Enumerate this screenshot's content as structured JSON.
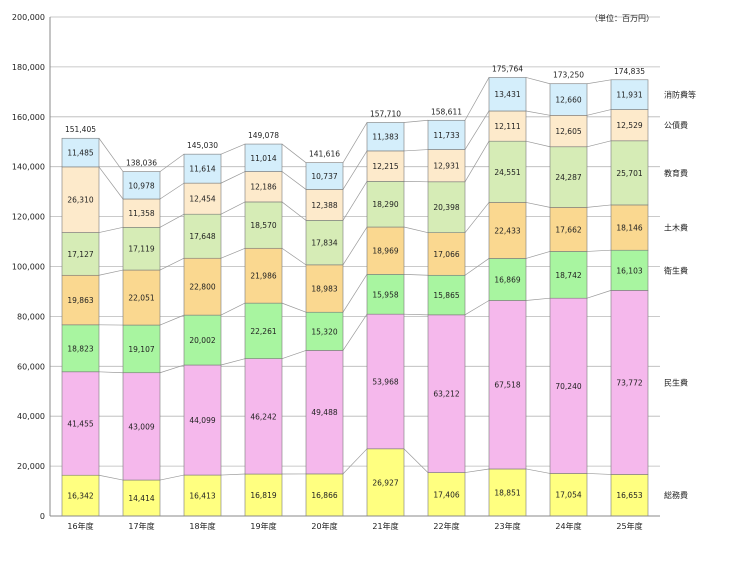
{
  "chart_data": {
    "type": "bar",
    "stacked": true,
    "unit_note": "（単位：百万円）",
    "categories": [
      "16年度",
      "17年度",
      "18年度",
      "19年度",
      "20年度",
      "21年度",
      "22年度",
      "23年度",
      "24年度",
      "25年度"
    ],
    "ylim": [
      0,
      200000
    ],
    "yticks": [
      "0",
      "20,000",
      "40,000",
      "60,000",
      "80,000",
      "100,000",
      "120,000",
      "140,000",
      "160,000",
      "180,000",
      "200,000"
    ],
    "series": [
      {
        "name": "総務費",
        "color": "#ffff80",
        "values": [
          16342,
          14414,
          16413,
          16819,
          16866,
          26927,
          17406,
          18851,
          17054,
          16653
        ],
        "labels": [
          "16,342",
          "14,414",
          "16,413",
          "16,819",
          "16,866",
          "26,927",
          "17,406",
          "18,851",
          "17,054",
          "16,653"
        ]
      },
      {
        "name": "民生費",
        "color": "#f5b8ec",
        "values": [
          41455,
          43009,
          44099,
          46242,
          49488,
          53968,
          63212,
          67518,
          70240,
          73772
        ],
        "labels": [
          "41,455",
          "43,009",
          "44,099",
          "46,242",
          "49,488",
          "53,968",
          "63,212",
          "67,518",
          "70,240",
          "73,772"
        ]
      },
      {
        "name": "衛生費",
        "color": "#a8f5a0",
        "values": [
          18823,
          19107,
          20002,
          22261,
          15320,
          15958,
          15865,
          16869,
          18742,
          16103
        ],
        "labels": [
          "18,823",
          "19,107",
          "20,002",
          "22,261",
          "15,320",
          "15,958",
          "15,865",
          "16,869",
          "18,742",
          "16,103"
        ]
      },
      {
        "name": "土木費",
        "color": "#fad890",
        "values": [
          19863,
          22051,
          22800,
          21986,
          18983,
          18969,
          17066,
          22433,
          17662,
          18146
        ],
        "labels": [
          "19,863",
          "22,051",
          "22,800",
          "21,986",
          "18,983",
          "18,969",
          "17,066",
          "22,433",
          "17,662",
          "18,146"
        ]
      },
      {
        "name": "教育費",
        "color": "#d6ecb6",
        "values": [
          17127,
          17119,
          17648,
          18570,
          17834,
          18290,
          20398,
          24551,
          24287,
          25701
        ],
        "labels": [
          "17,127",
          "17,119",
          "17,648",
          "18,570",
          "17,834",
          "18,290",
          "20,398",
          "24,551",
          "24,287",
          "25,701"
        ]
      },
      {
        "name": "公債費",
        "color": "#fdeacb",
        "values": [
          26310,
          11358,
          12454,
          12186,
          12388,
          12215,
          12931,
          12111,
          12605,
          12529
        ],
        "labels": [
          "26,310",
          "11,358",
          "12,454",
          "12,186",
          "12,388",
          "12,215",
          "12,931",
          "12,111",
          "12,605",
          "12,529"
        ]
      },
      {
        "name": "消防費等",
        "color": "#d4eefb",
        "values": [
          11485,
          10978,
          11614,
          11014,
          10737,
          11383,
          11733,
          13431,
          12660,
          11931
        ],
        "labels": [
          "11,485",
          "10,978",
          "11,614",
          "11,014",
          "10,737",
          "11,383",
          "11,733",
          "13,431",
          "12,660",
          "11,931"
        ]
      }
    ],
    "totals": [
      151405,
      138036,
      145030,
      149078,
      141616,
      157710,
      158611,
      175764,
      173250,
      174835
    ],
    "total_labels": [
      "151,405",
      "138,036",
      "145,030",
      "149,078",
      "141,616",
      "157,710",
      "158,611",
      "175,764",
      "173,250",
      "174,835"
    ],
    "grid": true,
    "legend": "right, labels at series of last bar"
  }
}
